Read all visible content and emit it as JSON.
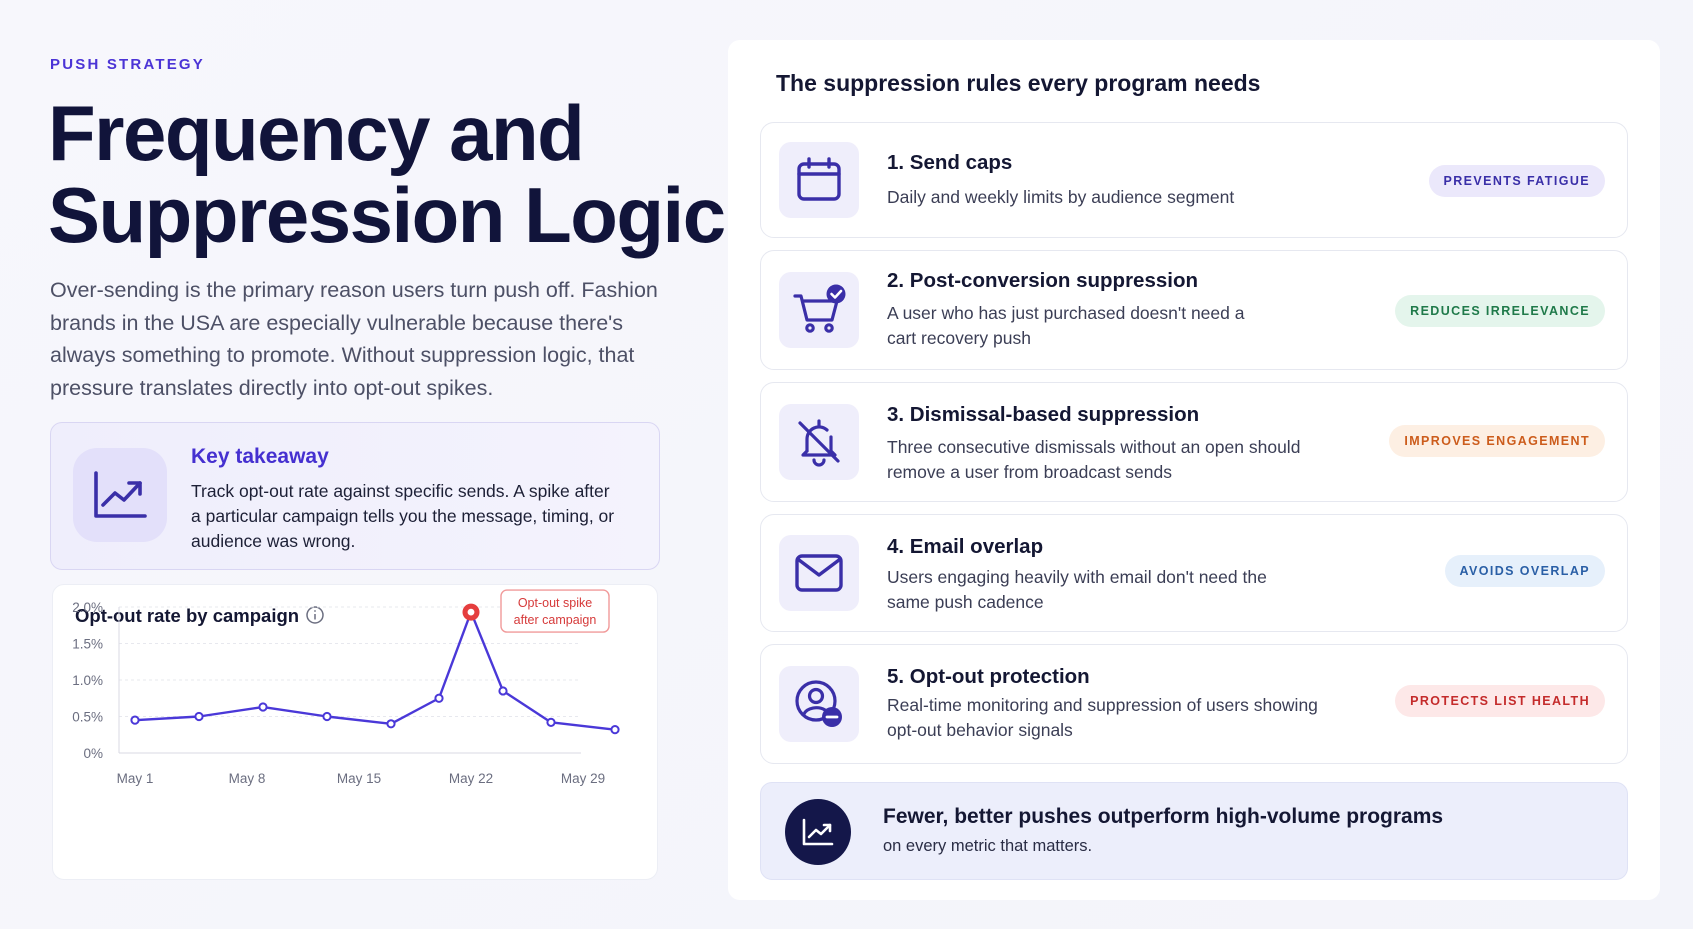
{
  "eyebrow": "PUSH STRATEGY",
  "title_line1": "Frequency and",
  "title_line2": "Suppression Logic",
  "intro": "Over-sending is the primary reason users turn push off. Fashion brands in the USA are especially vulnerable because there's always something to promote. Without suppression logic, that pressure translates directly into opt-out spikes.",
  "takeaway": {
    "title": "Key takeaway",
    "body": "Track opt-out rate against specific sends. A spike after a particular campaign tells you the message, timing, or audience was wrong.",
    "icon": "trend-up-icon"
  },
  "chart_data": {
    "type": "line",
    "title": "Opt-out rate by campaign",
    "xlabel": "",
    "ylabel": "",
    "x_tick_labels": [
      "May 1",
      "May 8",
      "May 15",
      "May 22",
      "May 29"
    ],
    "y_tick_labels": [
      "2.0%",
      "1.5%",
      "1.0%",
      "0.5%",
      "0%"
    ],
    "ylim": [
      0,
      2.0
    ],
    "xlim": [
      0,
      30
    ],
    "grid": true,
    "series": [
      {
        "color": "#4a38d8",
        "x": [
          1,
          5,
          9,
          13,
          17,
          20,
          22,
          24,
          27,
          31
        ],
        "values": [
          0.45,
          0.5,
          0.63,
          0.5,
          0.4,
          0.75,
          1.93,
          0.85,
          0.42,
          0.32
        ]
      }
    ],
    "annotation": {
      "text_line1": "Opt-out spike",
      "text_line2": "after campaign",
      "point_index": 6,
      "color": "#e53e3e"
    }
  },
  "panel": {
    "title": "The suppression rules every program needs",
    "rules": [
      {
        "title": "1. Send caps",
        "desc": "Daily and weekly limits by audience segment",
        "badge": "PREVENTS FATIGUE",
        "icon": "calendar-icon"
      },
      {
        "title": "2. Post-conversion suppression",
        "desc": "A user who has just purchased doesn't need a cart recovery push",
        "badge": "REDUCES IRRELEVANCE",
        "icon": "cart-check-icon"
      },
      {
        "title": "3. Dismissal-based suppression",
        "desc": "Three consecutive dismissals without an open should remove a user from broadcast sends",
        "badge": "IMPROVES ENGAGEMENT",
        "icon": "bell-off-icon"
      },
      {
        "title": "4. Email overlap",
        "desc": "Users engaging heavily with email don't need the same push cadence",
        "badge": "AVOIDS OVERLAP",
        "icon": "mail-icon"
      },
      {
        "title": "5. Opt-out protection",
        "desc": "Real-time monitoring and suppression of users showing opt-out behavior signals",
        "badge": "PROTECTS LIST HEALTH",
        "icon": "user-minus-icon"
      }
    ],
    "footer": {
      "title": "Fewer, better pushes outperform high-volume programs",
      "subtitle": "on every metric that matters.",
      "icon": "trend-up-icon"
    }
  },
  "colors": {
    "accent": "#4a38d8",
    "navy": "#14174a",
    "spike": "#e53e3e"
  }
}
